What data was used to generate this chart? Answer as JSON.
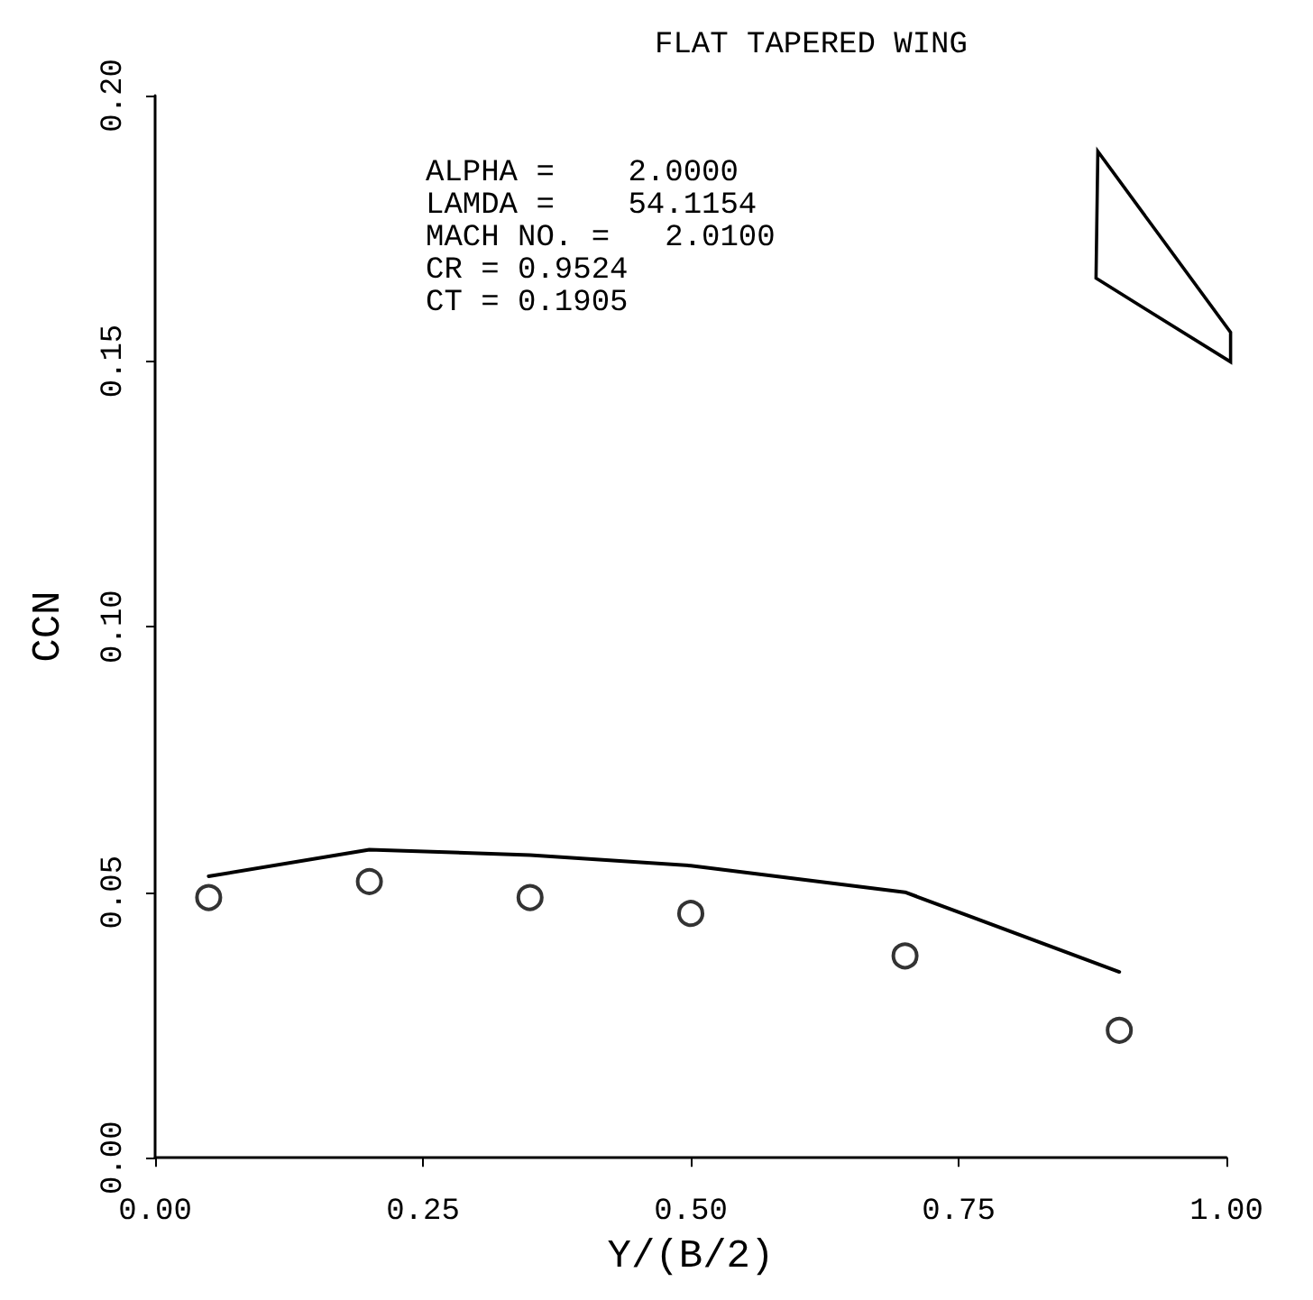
{
  "chart_data": {
    "type": "line",
    "title": "FLAT TAPERED WING",
    "xlabel": "Y/(B/2)",
    "ylabel": "CCN",
    "annotations": [
      "ALPHA =    2.0000",
      "LAMDA =    54.1154",
      "MACH NO. =   2.0100",
      "CR = 0.9524",
      "CT = 0.1905"
    ],
    "xlim": [
      0,
      1
    ],
    "xticks": [
      {
        "value": 0,
        "label": "0.00"
      },
      {
        "value": 0.25,
        "label": "0.25"
      },
      {
        "value": 0.5,
        "label": "0.50"
      },
      {
        "value": 0.75,
        "label": "0.75"
      },
      {
        "value": 1,
        "label": "1.00"
      }
    ],
    "ylim": [
      0,
      0.2
    ],
    "yticks": [
      {
        "value": 0,
        "label": "0.00"
      },
      {
        "value": 0.05,
        "label": "0.05"
      },
      {
        "value": 0.1,
        "label": "0.10"
      },
      {
        "value": 0.15,
        "label": "0.15"
      },
      {
        "value": 0.2,
        "label": "0.20"
      }
    ],
    "grid": false,
    "series": [
      {
        "color": "#000000",
        "marker": "none",
        "line_style": "solid",
        "x": [
          0.05,
          0.2,
          0.35,
          0.5,
          0.7,
          0.9
        ],
        "values": [
          0.053,
          0.058,
          0.057,
          0.055,
          0.05,
          0.035
        ]
      },
      {
        "type": "scatter",
        "color": "#000000",
        "marker": "circle",
        "x": [
          0.05,
          0.2,
          0.35,
          0.5,
          0.7,
          0.9
        ],
        "values": [
          0.049,
          0.052,
          0.049,
          0.046,
          0.038,
          0.024
        ]
      }
    ]
  }
}
